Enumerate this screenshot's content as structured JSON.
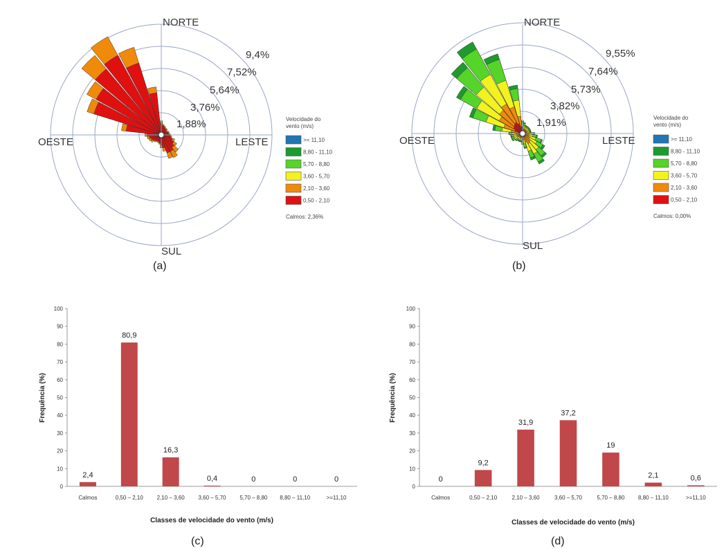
{
  "chart_data": [
    {
      "id": "a",
      "type": "windrose",
      "panel_label": "(a)",
      "directions": {
        "n": "NORTE",
        "s": "SUL",
        "e": "LESTE",
        "w": "OESTE"
      },
      "ring_labels": [
        "1,88%",
        "3,76%",
        "5,64%",
        "7,52%",
        "9,4%"
      ],
      "ring_values": [
        1.88,
        3.76,
        5.64,
        7.52,
        9.4
      ],
      "legend_title": [
        "Velocidade do",
        "vento (m/s)"
      ],
      "legend": [
        {
          "label": ">= 11,10",
          "color": "#1f77b4"
        },
        {
          "label": "8,80 - 11,10",
          "color": "#1e9a2e"
        },
        {
          "label": "5,70 - 8,80",
          "color": "#55d42a"
        },
        {
          "label": "3,60 - 5,70",
          "color": "#f2f21f"
        },
        {
          "label": "2,10 - 3,60",
          "color": "#f08a0a"
        },
        {
          "label": "0,50 - 2,10",
          "color": "#e01010"
        }
      ],
      "calm_label": "Calmos: 2,36%",
      "sectors": [
        {
          "angle": 0,
          "bands": [
            1.0,
            0.2
          ]
        },
        {
          "angle": 11.25,
          "bands": [
            0.8,
            0.1
          ]
        },
        {
          "angle": 22.5,
          "bands": [
            0.7,
            0.1
          ]
        },
        {
          "angle": 33.75,
          "bands": [
            0.6,
            0.1
          ]
        },
        {
          "angle": 45,
          "bands": [
            0.6,
            0.1
          ]
        },
        {
          "angle": 56.25,
          "bands": [
            0.5,
            0.1
          ]
        },
        {
          "angle": 67.5,
          "bands": [
            0.6,
            0.1
          ]
        },
        {
          "angle": 78.75,
          "bands": [
            0.6,
            0.1
          ]
        },
        {
          "angle": 90,
          "bands": [
            0.7,
            0.1
          ]
        },
        {
          "angle": 101.25,
          "bands": [
            0.8,
            0.1
          ]
        },
        {
          "angle": 112.5,
          "bands": [
            1.0,
            0.2
          ]
        },
        {
          "angle": 123.75,
          "bands": [
            1.2,
            0.3
          ]
        },
        {
          "angle": 135,
          "bands": [
            1.4,
            0.5
          ]
        },
        {
          "angle": 146.25,
          "bands": [
            1.6,
            0.6
          ]
        },
        {
          "angle": 157.5,
          "bands": [
            1.6,
            0.5
          ]
        },
        {
          "angle": 168.75,
          "bands": [
            1.1,
            0.3
          ]
        },
        {
          "angle": 180,
          "bands": [
            0.9,
            0.2
          ]
        },
        {
          "angle": 191.25,
          "bands": [
            0.7,
            0.1
          ]
        },
        {
          "angle": 202.5,
          "bands": [
            0.6,
            0.1
          ]
        },
        {
          "angle": 213.75,
          "bands": [
            0.6,
            0.1
          ]
        },
        {
          "angle": 225,
          "bands": [
            0.7,
            0.1
          ]
        },
        {
          "angle": 236.25,
          "bands": [
            0.8,
            0.2
          ]
        },
        {
          "angle": 247.5,
          "bands": [
            0.9,
            0.2
          ]
        },
        {
          "angle": 258.75,
          "bands": [
            1.0,
            0.2
          ]
        },
        {
          "angle": 270,
          "bands": [
            1.2,
            0.2
          ]
        },
        {
          "angle": 281.25,
          "bands": [
            3.0,
            0.4
          ]
        },
        {
          "angle": 292.5,
          "bands": [
            6.0,
            0.6
          ]
        },
        {
          "angle": 303.75,
          "bands": [
            6.3,
            0.9
          ]
        },
        {
          "angle": 315,
          "bands": [
            7.3,
            1.5
          ]
        },
        {
          "angle": 326.25,
          "bands": [
            7.7,
            1.8
          ]
        },
        {
          "angle": 337.5,
          "bands": [
            6.4,
            1.4
          ]
        },
        {
          "angle": 348.75,
          "bands": [
            3.6,
            0.5
          ]
        }
      ]
    },
    {
      "id": "b",
      "type": "windrose",
      "panel_label": "(b)",
      "directions": {
        "n": "NORTE",
        "s": "SUL",
        "e": "LESTE",
        "w": "OESTE"
      },
      "ring_labels": [
        "1,91%",
        "3,82%",
        "5,73%",
        "7,64%",
        "9,55%"
      ],
      "ring_values": [
        1.91,
        3.82,
        5.73,
        7.64,
        9.55
      ],
      "legend_title": [
        "Velocidade do",
        "vento (m/s)"
      ],
      "legend": [
        {
          "label": ">= 11,10",
          "color": "#1f77b4"
        },
        {
          "label": "8,80 - 11,10",
          "color": "#1e9a2e"
        },
        {
          "label": "5,70 - 8,80",
          "color": "#55d42a"
        },
        {
          "label": "3,60 - 5,70",
          "color": "#f2f21f"
        },
        {
          "label": "2,10 - 3,60",
          "color": "#f08a0a"
        },
        {
          "label": "0,50 - 2,10",
          "color": "#e01010"
        }
      ],
      "calm_label": "Calmos: 0,00%",
      "sectors": [
        {
          "angle": 0,
          "bands": [
            0.2,
            0.3,
            0.3,
            0.2,
            0.1
          ]
        },
        {
          "angle": 11.25,
          "bands": [
            0.2,
            0.2,
            0.3,
            0.2,
            0.05
          ]
        },
        {
          "angle": 22.5,
          "bands": [
            0.2,
            0.2,
            0.2,
            0.1,
            0.05
          ]
        },
        {
          "angle": 33.75,
          "bands": [
            0.2,
            0.2,
            0.2,
            0.1,
            0.05
          ]
        },
        {
          "angle": 45,
          "bands": [
            0.2,
            0.2,
            0.2,
            0.1,
            0.05
          ]
        },
        {
          "angle": 56.25,
          "bands": [
            0.2,
            0.2,
            0.2,
            0.1,
            0.05
          ]
        },
        {
          "angle": 67.5,
          "bands": [
            0.2,
            0.2,
            0.2,
            0.1,
            0.05
          ]
        },
        {
          "angle": 78.75,
          "bands": [
            0.2,
            0.2,
            0.2,
            0.1,
            0.05
          ]
        },
        {
          "angle": 90,
          "bands": [
            0.2,
            0.3,
            0.3,
            0.2,
            0.05
          ]
        },
        {
          "angle": 101.25,
          "bands": [
            0.2,
            0.3,
            0.4,
            0.3,
            0.1
          ]
        },
        {
          "angle": 112.5,
          "bands": [
            0.2,
            0.4,
            0.6,
            0.5,
            0.1
          ]
        },
        {
          "angle": 123.75,
          "bands": [
            0.2,
            0.5,
            0.7,
            0.6,
            0.2
          ]
        },
        {
          "angle": 135,
          "bands": [
            0.3,
            0.6,
            0.9,
            0.7,
            0.2
          ]
        },
        {
          "angle": 146.25,
          "bands": [
            0.3,
            0.7,
            1.0,
            0.8,
            0.2
          ]
        },
        {
          "angle": 157.5,
          "bands": [
            0.3,
            0.5,
            0.8,
            0.6,
            0.2
          ]
        },
        {
          "angle": 168.75,
          "bands": [
            0.2,
            0.3,
            0.4,
            0.3,
            0.1
          ]
        },
        {
          "angle": 180,
          "bands": [
            0.2,
            0.2,
            0.3,
            0.2,
            0.05
          ]
        },
        {
          "angle": 191.25,
          "bands": [
            0.2,
            0.2,
            0.2,
            0.1,
            0.05
          ]
        },
        {
          "angle": 202.5,
          "bands": [
            0.2,
            0.2,
            0.2,
            0.1,
            0.05
          ]
        },
        {
          "angle": 213.75,
          "bands": [
            0.2,
            0.2,
            0.2,
            0.1,
            0.05
          ]
        },
        {
          "angle": 225,
          "bands": [
            0.2,
            0.2,
            0.2,
            0.2,
            0.05
          ]
        },
        {
          "angle": 236.25,
          "bands": [
            0.2,
            0.3,
            0.3,
            0.2,
            0.05
          ]
        },
        {
          "angle": 247.5,
          "bands": [
            0.2,
            0.3,
            0.3,
            0.2,
            0.05
          ]
        },
        {
          "angle": 258.75,
          "bands": [
            0.2,
            0.3,
            0.3,
            0.2,
            0.05
          ]
        },
        {
          "angle": 270,
          "bands": [
            0.2,
            0.3,
            0.4,
            0.2,
            0.1
          ]
        },
        {
          "angle": 281.25,
          "bands": [
            0.4,
            0.6,
            0.8,
            0.6,
            0.2
          ]
        },
        {
          "angle": 292.5,
          "bands": [
            0.7,
            1.0,
            1.6,
            1.2,
            0.3
          ]
        },
        {
          "angle": 303.75,
          "bands": [
            0.9,
            1.4,
            2.2,
            1.6,
            0.4
          ]
        },
        {
          "angle": 315,
          "bands": [
            1.0,
            1.6,
            2.6,
            2.2,
            0.6
          ]
        },
        {
          "angle": 326.25,
          "bands": [
            1.1,
            1.8,
            2.9,
            2.5,
            0.7
          ]
        },
        {
          "angle": 337.5,
          "bands": [
            0.9,
            1.5,
            2.4,
            1.9,
            0.5
          ]
        },
        {
          "angle": 348.75,
          "bands": [
            0.6,
            0.9,
            1.4,
            1.0,
            0.3
          ]
        }
      ]
    },
    {
      "id": "c",
      "type": "bar",
      "panel_label": "(c)",
      "categories": [
        "Calmos",
        "0,50 – 2,10",
        "2,10 – 3,60",
        "3,60 – 5,70",
        "5,70 – 8,80",
        "8,80 – 11,10",
        ">=11,10"
      ],
      "values": [
        2.4,
        80.9,
        16.3,
        0.4,
        0,
        0,
        0
      ],
      "value_labels": [
        "2,4",
        "80,9",
        "16,3",
        "0,4",
        "0",
        "0",
        "0"
      ],
      "xlabel": "Classes de velocidade do vento (m/s)",
      "ylabel": "Frequência (%)",
      "ylim": [
        0,
        100
      ],
      "yticks": [
        "0",
        "10",
        "20",
        "30",
        "40",
        "50",
        "60",
        "70",
        "80",
        "90",
        "100"
      ],
      "bar_color": "#c0474a"
    },
    {
      "id": "d",
      "type": "bar",
      "panel_label": "(d)",
      "categories": [
        "Calmos",
        "0,50 – 2,10",
        "2,10 – 3,60",
        "3,60 – 5,70",
        "5,70 – 8,80",
        "8,80 – 11,10",
        ">=11,10"
      ],
      "values": [
        0,
        9.2,
        31.9,
        37.2,
        19,
        2.1,
        0.6
      ],
      "value_labels": [
        "0",
        "9,2",
        "31,9",
        "37,2",
        "19",
        "2,1",
        "0,6"
      ],
      "xlabel": "Classes de velocidade do vento (m/s)",
      "ylabel": "Frequência (%)",
      "ylim": [
        0,
        100
      ],
      "yticks": [
        "0",
        "10",
        "20",
        "30",
        "40",
        "50",
        "60",
        "70",
        "80",
        "90",
        "100"
      ],
      "bar_color": "#c0474a"
    }
  ]
}
